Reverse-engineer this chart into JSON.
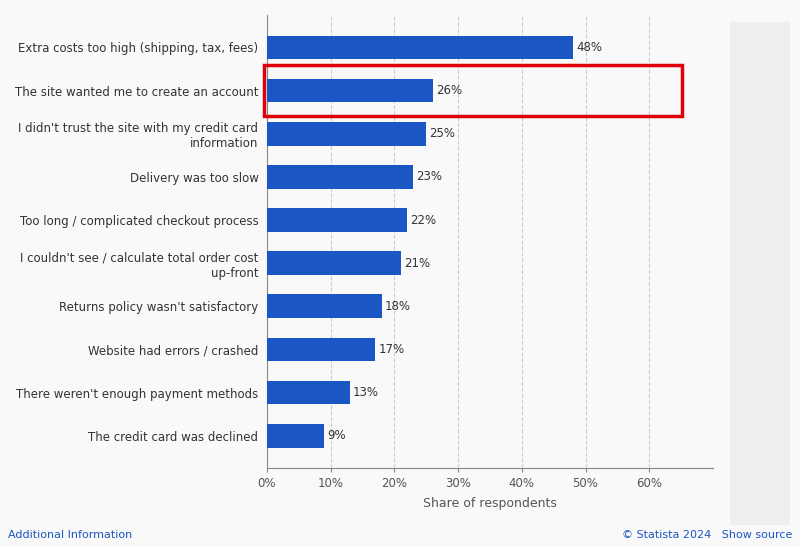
{
  "categories": [
    "The credit card was declined",
    "There weren't enough payment methods",
    "Website had errors / crashed",
    "Returns policy wasn't satisfactory",
    "I couldn't see / calculate total order cost\nup-front",
    "Too long / complicated checkout process",
    "Delivery was too slow",
    "I didn't trust the site with my credit card\ninformation",
    "The site wanted me to create an account",
    "Extra costs too high (shipping, tax, fees)"
  ],
  "values": [
    9,
    13,
    17,
    18,
    21,
    22,
    23,
    25,
    26,
    48
  ],
  "bar_color": "#1a56c4",
  "highlight_index": 8,
  "highlight_box_color": "#e0000a",
  "xlabel": "Share of respondents",
  "xlim": [
    0,
    70
  ],
  "xticks": [
    0,
    10,
    20,
    30,
    40,
    50,
    60
  ],
  "xtick_labels": [
    "0%",
    "10%",
    "20%",
    "30%",
    "40%",
    "50%",
    "60%"
  ],
  "background_color": "#f9f9f9",
  "plot_bg_color": "#f9f9f9",
  "grid_color": "#cccccc",
  "bar_height": 0.55,
  "label_fontsize": 8.5,
  "value_fontsize": 8.5,
  "xlabel_fontsize": 9,
  "footer_text_left": "Additional Information",
  "footer_text_right": "© Statista 2024   Show source",
  "statista_color": "#1a56c4"
}
